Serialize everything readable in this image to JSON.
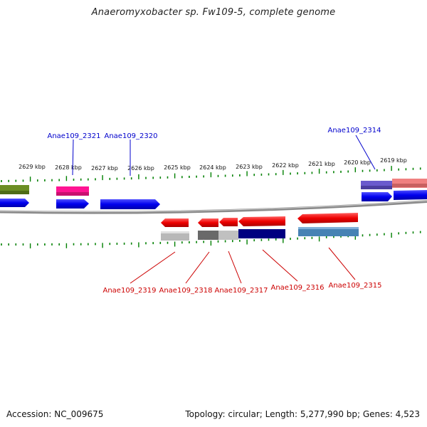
{
  "title": "Anaeromyxobacter sp. Fw109-5, complete genome",
  "footer": {
    "accession": "Accession: NC_009675",
    "info": "Topology: circular; Length: 5,277,990 bp; Genes: 4,523"
  },
  "colors": {
    "tick": "#008000",
    "backbone": "#808080",
    "forward_label": "#0000cc",
    "reverse_label": "#cc0000"
  },
  "tick_labels": [
    "2629 kbp",
    "2628 kbp",
    "2627 kbp",
    "2626 kbp",
    "2625 kbp",
    "2624 kbp",
    "2623 kbp",
    "2622 kbp",
    "2621 kbp",
    "2620 kbp",
    "2619 kbp"
  ],
  "forward_genes": [
    "Anae109_2321",
    "Anae109_2320",
    "Anae109_2314"
  ],
  "reverse_genes": [
    "Anae109_2319",
    "Anae109_2318",
    "Anae109_2317",
    "Anae109_2316",
    "Anae109_2315"
  ]
}
